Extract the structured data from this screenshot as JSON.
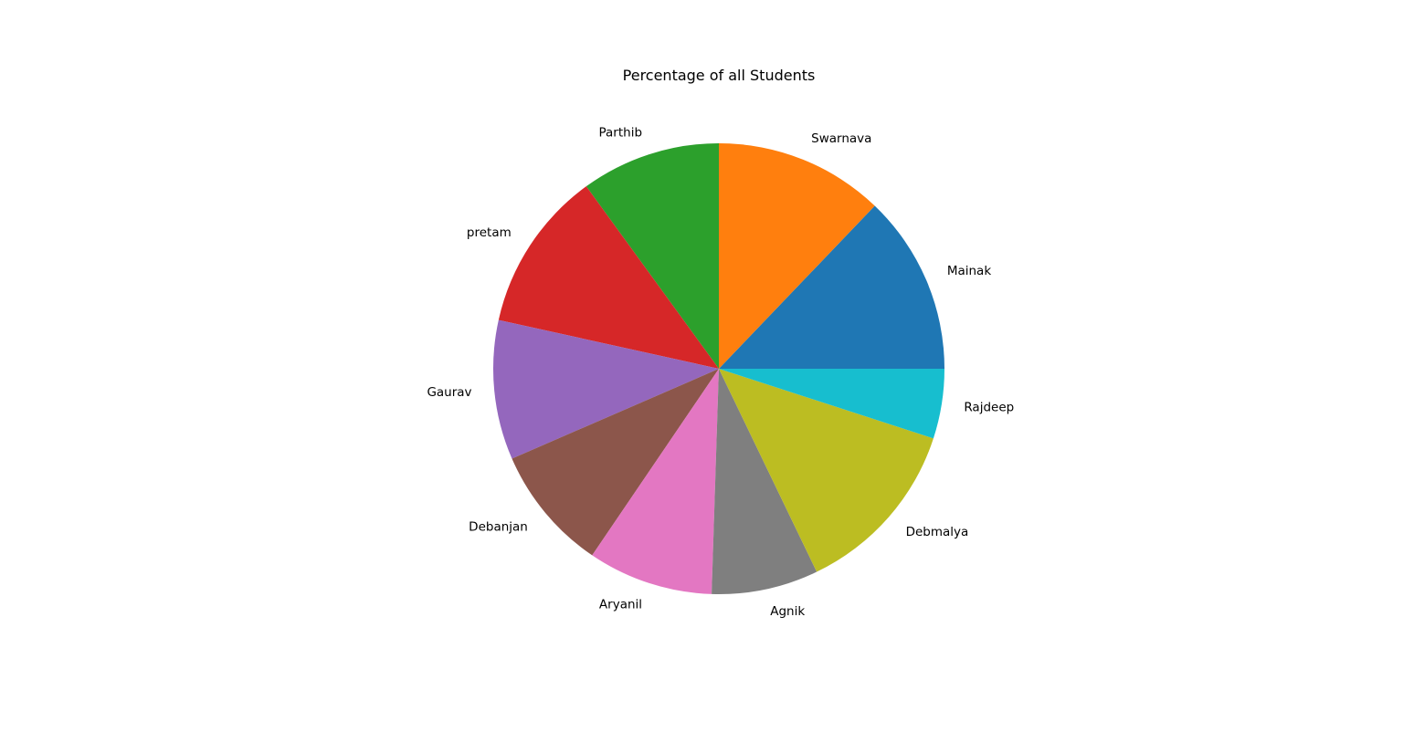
{
  "chart_data": {
    "type": "pie",
    "title": "Percentage of all Students",
    "start_angle_deg": 0,
    "direction": "counterclockwise",
    "slices": [
      {
        "label": "Mainak",
        "value": 12.6,
        "color": "#1f77b4"
      },
      {
        "label": "Swarnava",
        "value": 11.9,
        "color": "#ff7f0e"
      },
      {
        "label": "Parthib",
        "value": 9.8,
        "color": "#2ca02c"
      },
      {
        "label": "pretam",
        "value": 11.3,
        "color": "#d62728"
      },
      {
        "label": "Gaurav",
        "value": 9.8,
        "color": "#9467bd"
      },
      {
        "label": "Debanjan",
        "value": 8.8,
        "color": "#8c564b"
      },
      {
        "label": "Aryanil",
        "value": 8.8,
        "color": "#e377c2"
      },
      {
        "label": "Agnik",
        "value": 7.5,
        "color": "#7f7f7f"
      },
      {
        "label": "Debmalya",
        "value": 12.6,
        "color": "#bcbd22"
      },
      {
        "label": "Rajdeep",
        "value": 4.9,
        "color": "#17becf"
      }
    ]
  }
}
